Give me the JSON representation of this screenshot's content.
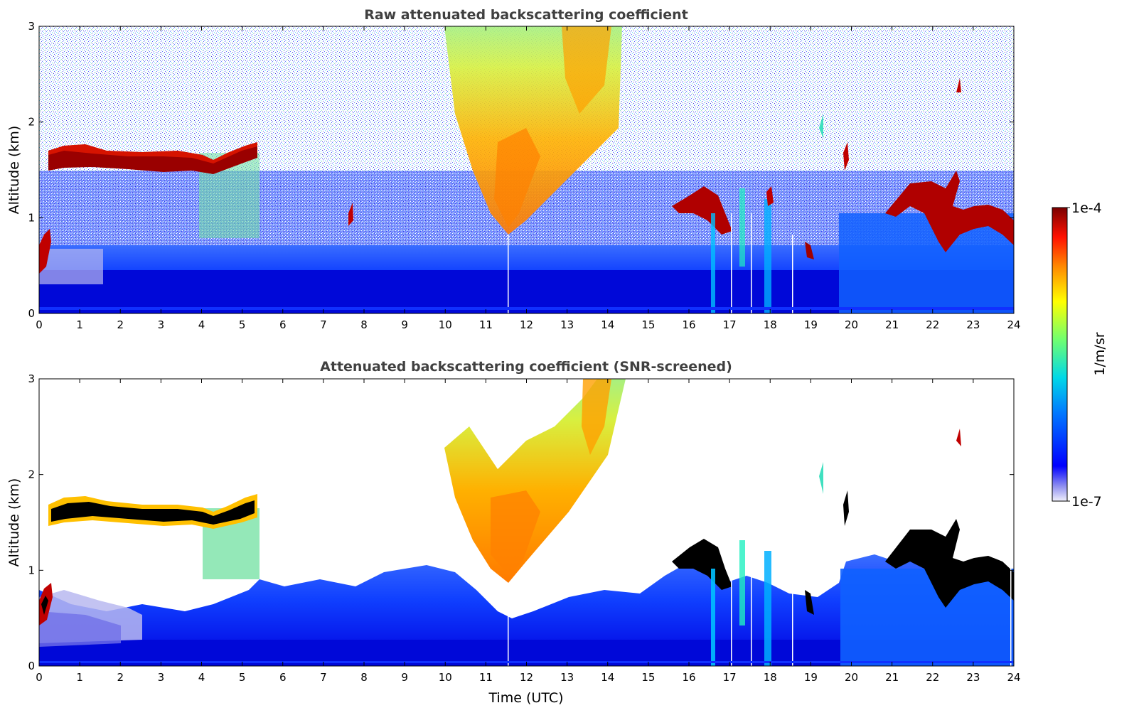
{
  "chart_data": [
    {
      "type": "heatmap",
      "title": "Raw attenuated backscattering coefficient",
      "xlabel": "",
      "ylabel": "Altitude (km)",
      "xlim": [
        0,
        24
      ],
      "ylim": [
        0,
        3
      ],
      "xticks": [
        "0",
        "1",
        "2",
        "3",
        "4",
        "5",
        "6",
        "7",
        "8",
        "9",
        "10",
        "11",
        "12",
        "13",
        "14",
        "15",
        "16",
        "17",
        "18",
        "19",
        "20",
        "21",
        "22",
        "23",
        "24"
      ],
      "yticks": [
        "0",
        "1",
        "2",
        "3"
      ],
      "features": [
        {
          "kind": "stratocumulus_layer",
          "time": [
            0.25,
            5.4
          ],
          "altitude_km": [
            1.5,
            1.75
          ],
          "level": "1e-4"
        },
        {
          "kind": "fog_low_cloud",
          "time": [
            0,
            0.3
          ],
          "altitude_km": [
            0.4,
            0.8
          ],
          "level": "1e-4"
        },
        {
          "kind": "aerosol_plume",
          "time": [
            10,
            14.5
          ],
          "altitude_km": [
            0.8,
            3.0
          ],
          "level": "~1e-5"
        },
        {
          "kind": "boundary_layer",
          "time": [
            0,
            24
          ],
          "altitude_km": [
            0,
            0.9
          ],
          "level": "~1e-6"
        },
        {
          "kind": "broken_cloud",
          "time": [
            15.6,
            18.2
          ],
          "altitude_km": [
            0.8,
            1.4
          ],
          "level": "1e-4"
        },
        {
          "kind": "broken_cloud",
          "time": [
            21,
            24
          ],
          "altitude_km": [
            0.6,
            1.6
          ],
          "level": "1e-4"
        }
      ]
    },
    {
      "type": "heatmap",
      "title": "Attenuated backscattering coefficient (SNR-screened)",
      "xlabel": "Time (UTC)",
      "ylabel": "Altitude (km)",
      "xlim": [
        0,
        24
      ],
      "ylim": [
        0,
        3
      ],
      "xticks": [
        "0",
        "1",
        "2",
        "3",
        "4",
        "5",
        "6",
        "7",
        "8",
        "9",
        "10",
        "11",
        "12",
        "13",
        "14",
        "15",
        "16",
        "17",
        "18",
        "19",
        "20",
        "21",
        "22",
        "23",
        "24"
      ],
      "yticks": [
        "0",
        "1",
        "2",
        "3"
      ],
      "features": [
        {
          "kind": "stratocumulus_layer",
          "time": [
            0.25,
            5.4
          ],
          "altitude_km": [
            1.45,
            1.8
          ],
          "level": ">1e-4"
        },
        {
          "kind": "aerosol_plume",
          "time": [
            10,
            14.5
          ],
          "altitude_km": [
            0.8,
            3.0
          ],
          "level": "~1e-5"
        },
        {
          "kind": "boundary_layer",
          "time": [
            0,
            24
          ],
          "altitude_km": [
            0,
            0.8
          ],
          "level": "~1e-6"
        }
      ]
    }
  ],
  "colorbar": {
    "label": "1/m/sr",
    "max_label": "1e-4",
    "min_label": "1e-7",
    "colors": [
      "#e8e8f8",
      "#0000ff",
      "#0090ff",
      "#00e0e0",
      "#60ff60",
      "#ffff00",
      "#ff8000",
      "#ff0000",
      "#8b0000"
    ]
  }
}
